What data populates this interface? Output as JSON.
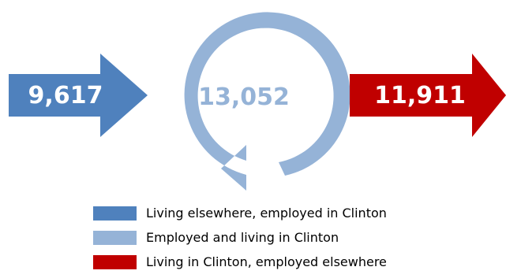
{
  "colors": {
    "inflow": "#4F81BD",
    "internal": "#95B3D7",
    "outflow": "#C00000",
    "value_text_on_arrow": "#FFFFFF",
    "value_text_center": "#95B3D7"
  },
  "flows": {
    "inflow": {
      "value": "9,617"
    },
    "internal": {
      "value": "13,052"
    },
    "outflow": {
      "value": "11,911"
    }
  },
  "legend": [
    {
      "key": "inflow",
      "label": "Living elsewhere, employed in Clinton"
    },
    {
      "key": "internal",
      "label": "Employed and living in Clinton"
    },
    {
      "key": "outflow",
      "label": "Living in Clinton, employed elsewhere"
    }
  ]
}
